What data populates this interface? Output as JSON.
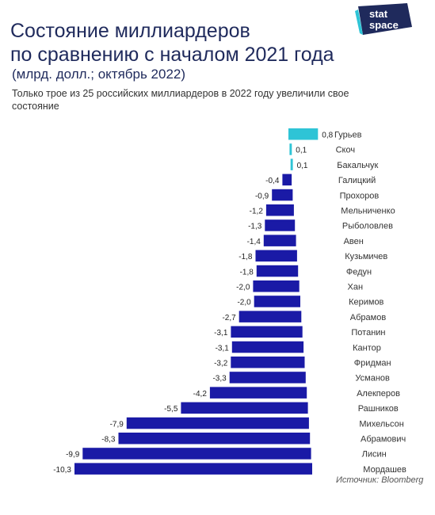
{
  "brand": {
    "line1": "stat",
    "line2": "space",
    "color": "#1f2a5c",
    "accent": "#2ec4d6"
  },
  "title_line1": "Состояние миллиардеров",
  "title_line2": "по сравнению с началом 2021 года",
  "subtitle": "(млрд. долл.; октябрь 2022)",
  "note": "Только трое из 25 российских миллиардеров в 2022 году увеличили свое состояние",
  "source": "Источник: Bloomberg",
  "chart_data": {
    "type": "bar",
    "orientation": "horizontal",
    "title": "Состояние миллиардеров по сравнению с началом 2021 года",
    "subtitle": "(млрд. долл.; октябрь 2022)",
    "unit": "млрд. долл.",
    "categories": [
      "Гурьев",
      "Скоч",
      "Бакальчук",
      "Галицкий",
      "Прохоров",
      "Мельниченко",
      "Рыболовлев",
      "Авен",
      "Кузьмичев",
      "Федун",
      "Хан",
      "Керимов",
      "Абрамов",
      "Потанин",
      "Кантор",
      "Фридман",
      "Усманов",
      "Алекперов",
      "Рашников",
      "Михельсон",
      "Абрамович",
      "Лисин",
      "Мордашев"
    ],
    "values": [
      0.8,
      0.1,
      0.1,
      -0.4,
      -0.9,
      -1.2,
      -1.3,
      -1.4,
      -1.8,
      -1.8,
      -2.0,
      -2.0,
      -2.7,
      -3.1,
      -3.1,
      -3.2,
      -3.3,
      -4.2,
      -5.5,
      -7.9,
      -8.3,
      -9.9,
      -10.3
    ],
    "value_labels": [
      "0,8",
      "0,1",
      "0,1",
      "-0,4",
      "-0,9",
      "-1,2",
      "-1,3",
      "-1,4",
      "-1,8",
      "-1,8",
      "-2,0",
      "-2,0",
      "-2,7",
      "-3,1",
      "-3,1",
      "-3,2",
      "-3,3",
      "-4,2",
      "-5,5",
      "-7,9",
      "-8,3",
      "-9,9",
      "-10,3"
    ],
    "colors": {
      "positive": "#2ec4d6",
      "negative": "#1a1aa6"
    },
    "grid": false,
    "legend": "none"
  }
}
